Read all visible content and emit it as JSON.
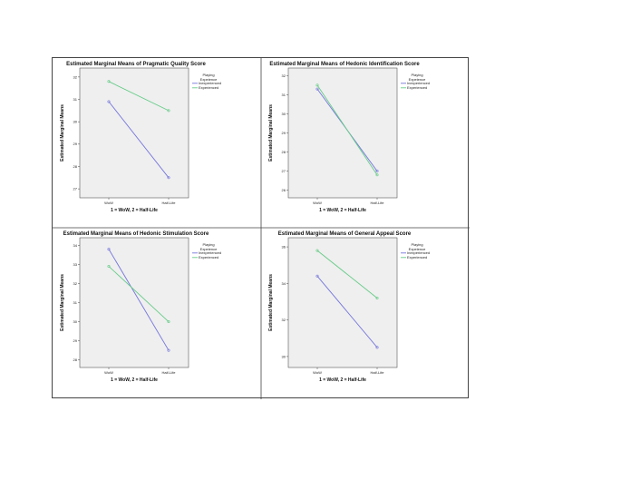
{
  "colors": {
    "inexperienced": "#7777dd",
    "experienced": "#66cc88",
    "plot_bg": "#efefef"
  },
  "chart_data": [
    {
      "type": "line",
      "title": "Estimated Marginal Means of Pragmatic Quality Score",
      "xlabel": "1 = WoW, 2 = Half-Life",
      "ylabel": "Estimated Marginal Means",
      "categories": [
        "WoW",
        "Half-Life"
      ],
      "legend_title": [
        "Playing",
        "Expeience"
      ],
      "yticks": [
        "27",
        "28",
        "29",
        "30",
        "31",
        "32"
      ],
      "ylim": [
        26.6,
        32.4
      ],
      "series": [
        {
          "name": "Inexperienced",
          "values": [
            30.9,
            27.5
          ]
        },
        {
          "name": "Experienced",
          "values": [
            31.8,
            30.5
          ]
        }
      ]
    },
    {
      "type": "line",
      "title": "Estimated Marginal Means of Hedonic Identification Score",
      "xlabel": "1 = WoW, 2 = Half-Life",
      "ylabel": "Estimated Marginal Means",
      "categories": [
        "WoW",
        "Half-Life"
      ],
      "legend_title": [
        "Playing",
        "Expeience"
      ],
      "yticks": [
        "26",
        "27",
        "28",
        "29",
        "30",
        "31",
        "32"
      ],
      "ylim": [
        25.6,
        32.4
      ],
      "series": [
        {
          "name": "Inexperienced",
          "values": [
            31.3,
            27.0
          ]
        },
        {
          "name": "Experienced",
          "values": [
            31.5,
            26.8
          ]
        }
      ]
    },
    {
      "type": "line",
      "title": "Estimated Marginal Means of Hedonic Stimulation Score",
      "xlabel": "1 = WoW, 2 = Half-Life",
      "ylabel": "Estimated Marginal Means",
      "categories": [
        "WoW",
        "Half-Life"
      ],
      "legend_title": [
        "Playing",
        "Expeience"
      ],
      "yticks": [
        "28",
        "29",
        "30",
        "31",
        "32",
        "33",
        "34"
      ],
      "ylim": [
        27.6,
        34.4
      ],
      "series": [
        {
          "name": "Inexperienced",
          "values": [
            33.8,
            28.5
          ]
        },
        {
          "name": "Experienced",
          "values": [
            32.9,
            30.0
          ]
        }
      ]
    },
    {
      "type": "line",
      "title": "Estimated Marginal Means of General Appeal Score",
      "xlabel": "1 = WoW, 2 = Half-Life",
      "ylabel": "Estimated Marginal Means",
      "categories": [
        "WoW",
        "Half-Life"
      ],
      "legend_title": [
        "Playing",
        "Expeience"
      ],
      "yticks": [
        "30",
        "32",
        "34",
        "36"
      ],
      "ylim": [
        29.4,
        36.5
      ],
      "series": [
        {
          "name": "Inexperienced",
          "values": [
            34.4,
            30.5
          ]
        },
        {
          "name": "Experienced",
          "values": [
            35.8,
            33.2
          ]
        }
      ]
    }
  ]
}
